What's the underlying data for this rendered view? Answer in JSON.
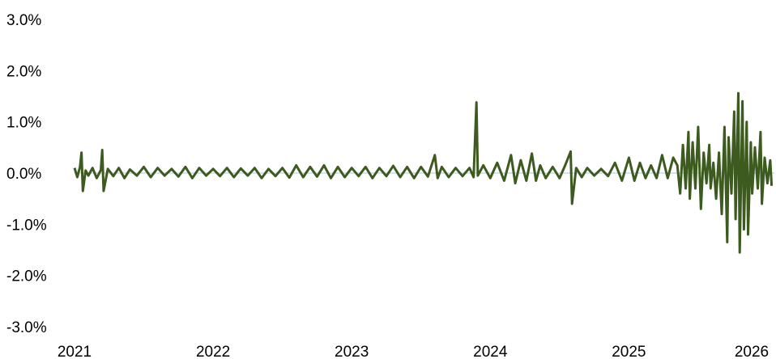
{
  "chart_data": {
    "type": "line",
    "title": "",
    "xlabel": "",
    "ylabel": "",
    "xlim": [
      2021,
      2026.05
    ],
    "ylim": [
      -3.0,
      3.0
    ],
    "x_ticks": [
      2021,
      2022,
      2023,
      2024,
      2025,
      2026
    ],
    "x_tick_labels": [
      "2021",
      "2022",
      "2023",
      "2024",
      "2025",
      "2026"
    ],
    "y_ticks": [
      3.0,
      2.0,
      1.0,
      0.0,
      -1.0,
      -2.0,
      -3.0
    ],
    "y_tick_labels": [
      "3.0%",
      "2.0%",
      "1.0%",
      "0.0%",
      "-1.0%",
      "-2.0%",
      "-3.0%"
    ],
    "grid": false,
    "legend": "none",
    "zero_line_color": "#cfe6ef",
    "series": [
      {
        "color": "#3d5a1f",
        "points": [
          [
            2021.0,
            0.1
          ],
          [
            2021.02,
            -0.08
          ],
          [
            2021.04,
            0.12
          ],
          [
            2021.05,
            0.4
          ],
          [
            2021.06,
            -0.35
          ],
          [
            2021.08,
            0.05
          ],
          [
            2021.1,
            -0.05
          ],
          [
            2021.13,
            0.1
          ],
          [
            2021.16,
            -0.1
          ],
          [
            2021.19,
            0.06
          ],
          [
            2021.2,
            0.45
          ],
          [
            2021.21,
            -0.35
          ],
          [
            2021.24,
            0.08
          ],
          [
            2021.28,
            -0.06
          ],
          [
            2021.32,
            0.1
          ],
          [
            2021.36,
            -0.1
          ],
          [
            2021.4,
            0.07
          ],
          [
            2021.45,
            -0.05
          ],
          [
            2021.5,
            0.12
          ],
          [
            2021.55,
            -0.08
          ],
          [
            2021.6,
            0.1
          ],
          [
            2021.65,
            -0.05
          ],
          [
            2021.7,
            0.08
          ],
          [
            2021.75,
            -0.07
          ],
          [
            2021.8,
            0.12
          ],
          [
            2021.85,
            -0.1
          ],
          [
            2021.9,
            0.1
          ],
          [
            2021.95,
            -0.05
          ],
          [
            2022.0,
            0.08
          ],
          [
            2022.05,
            -0.06
          ],
          [
            2022.1,
            0.1
          ],
          [
            2022.15,
            -0.08
          ],
          [
            2022.2,
            0.09
          ],
          [
            2022.25,
            -0.05
          ],
          [
            2022.3,
            0.1
          ],
          [
            2022.35,
            -0.1
          ],
          [
            2022.4,
            0.08
          ],
          [
            2022.45,
            -0.06
          ],
          [
            2022.5,
            0.1
          ],
          [
            2022.55,
            -0.09
          ],
          [
            2022.6,
            0.15
          ],
          [
            2022.65,
            -0.08
          ],
          [
            2022.7,
            0.12
          ],
          [
            2022.75,
            -0.07
          ],
          [
            2022.8,
            0.15
          ],
          [
            2022.85,
            -0.1
          ],
          [
            2022.9,
            0.12
          ],
          [
            2022.95,
            -0.08
          ],
          [
            2023.0,
            0.1
          ],
          [
            2023.05,
            -0.06
          ],
          [
            2023.1,
            0.12
          ],
          [
            2023.15,
            -0.1
          ],
          [
            2023.2,
            0.1
          ],
          [
            2023.25,
            -0.06
          ],
          [
            2023.3,
            0.14
          ],
          [
            2023.35,
            -0.08
          ],
          [
            2023.4,
            0.12
          ],
          [
            2023.45,
            -0.1
          ],
          [
            2023.5,
            0.12
          ],
          [
            2023.55,
            -0.07
          ],
          [
            2023.6,
            0.35
          ],
          [
            2023.62,
            -0.1
          ],
          [
            2023.65,
            0.12
          ],
          [
            2023.7,
            -0.08
          ],
          [
            2023.75,
            0.1
          ],
          [
            2023.8,
            -0.06
          ],
          [
            2023.85,
            0.1
          ],
          [
            2023.88,
            -0.08
          ],
          [
            2023.9,
            1.38
          ],
          [
            2023.91,
            -0.05
          ],
          [
            2023.95,
            0.15
          ],
          [
            2024.0,
            -0.1
          ],
          [
            2024.05,
            0.2
          ],
          [
            2024.1,
            -0.15
          ],
          [
            2024.15,
            0.35
          ],
          [
            2024.18,
            -0.2
          ],
          [
            2024.22,
            0.25
          ],
          [
            2024.26,
            -0.15
          ],
          [
            2024.3,
            0.38
          ],
          [
            2024.33,
            -0.15
          ],
          [
            2024.36,
            0.15
          ],
          [
            2024.4,
            -0.1
          ],
          [
            2024.45,
            0.12
          ],
          [
            2024.5,
            -0.1
          ],
          [
            2024.54,
            0.15
          ],
          [
            2024.58,
            0.42
          ],
          [
            2024.59,
            -0.6
          ],
          [
            2024.62,
            0.1
          ],
          [
            2024.66,
            -0.08
          ],
          [
            2024.7,
            0.1
          ],
          [
            2024.75,
            -0.05
          ],
          [
            2024.8,
            0.08
          ],
          [
            2024.85,
            -0.06
          ],
          [
            2024.9,
            0.2
          ],
          [
            2024.95,
            -0.15
          ],
          [
            2025.0,
            0.3
          ],
          [
            2025.04,
            -0.15
          ],
          [
            2025.08,
            0.2
          ],
          [
            2025.12,
            -0.1
          ],
          [
            2025.16,
            0.15
          ],
          [
            2025.2,
            -0.1
          ],
          [
            2025.24,
            0.35
          ],
          [
            2025.28,
            -0.1
          ],
          [
            2025.32,
            0.3
          ],
          [
            2025.35,
            0.15
          ],
          [
            2025.37,
            -0.4
          ],
          [
            2025.39,
            0.55
          ],
          [
            2025.41,
            -0.3
          ],
          [
            2025.43,
            0.8
          ],
          [
            2025.44,
            -0.5
          ],
          [
            2025.46,
            0.6
          ],
          [
            2025.48,
            -0.3
          ],
          [
            2025.5,
            0.9
          ],
          [
            2025.52,
            -0.7
          ],
          [
            2025.54,
            0.4
          ],
          [
            2025.56,
            -0.2
          ],
          [
            2025.58,
            0.55
          ],
          [
            2025.59,
            -0.3
          ],
          [
            2025.61,
            0.2
          ],
          [
            2025.63,
            -0.5
          ],
          [
            2025.65,
            0.4
          ],
          [
            2025.67,
            -0.8
          ],
          [
            2025.69,
            0.9
          ],
          [
            2025.71,
            -1.35
          ],
          [
            2025.72,
            0.7
          ],
          [
            2025.74,
            -0.4
          ],
          [
            2025.76,
            1.2
          ],
          [
            2025.77,
            -0.9
          ],
          [
            2025.79,
            1.56
          ],
          [
            2025.8,
            -1.55
          ],
          [
            2025.82,
            1.4
          ],
          [
            2025.83,
            -1.1
          ],
          [
            2025.85,
            1.0
          ],
          [
            2025.86,
            -1.2
          ],
          [
            2025.88,
            0.6
          ],
          [
            2025.89,
            -0.4
          ],
          [
            2025.91,
            0.5
          ],
          [
            2025.93,
            -0.3
          ],
          [
            2025.95,
            0.8
          ],
          [
            2025.96,
            -0.6
          ],
          [
            2025.98,
            0.3
          ],
          [
            2026.0,
            -0.2
          ],
          [
            2026.02,
            0.25
          ],
          [
            2026.03,
            -0.25
          ]
        ]
      }
    ]
  }
}
